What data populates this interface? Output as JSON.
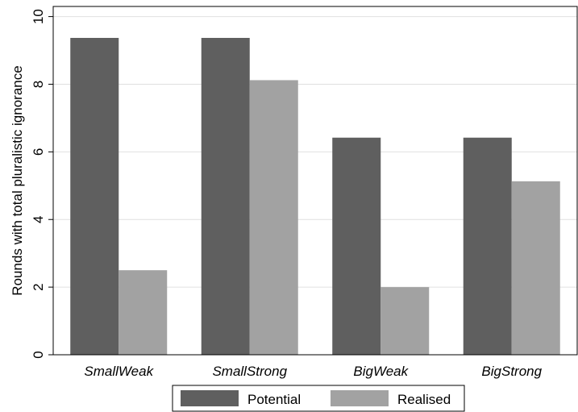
{
  "chart_data": {
    "type": "bar",
    "title": "",
    "xlabel": "",
    "ylabel": "Rounds with total pluralistic ignorance",
    "categories": [
      "SmallWeak",
      "SmallStrong",
      "BigWeak",
      "BigStrong"
    ],
    "series": [
      {
        "name": "Potential",
        "values": [
          9.37,
          9.37,
          6.42,
          6.42
        ]
      },
      {
        "name": "Realised",
        "values": [
          2.5,
          8.12,
          2.0,
          5.13
        ]
      }
    ],
    "ylim": [
      0,
      10.3
    ],
    "yticks": [
      0,
      2,
      4,
      6,
      8,
      10
    ],
    "grid": true,
    "legend_position": "bottom",
    "colors": {
      "Potential": "#5f5f5f",
      "Realised": "#a2a2a2",
      "grid": "#e0e0e0"
    }
  }
}
